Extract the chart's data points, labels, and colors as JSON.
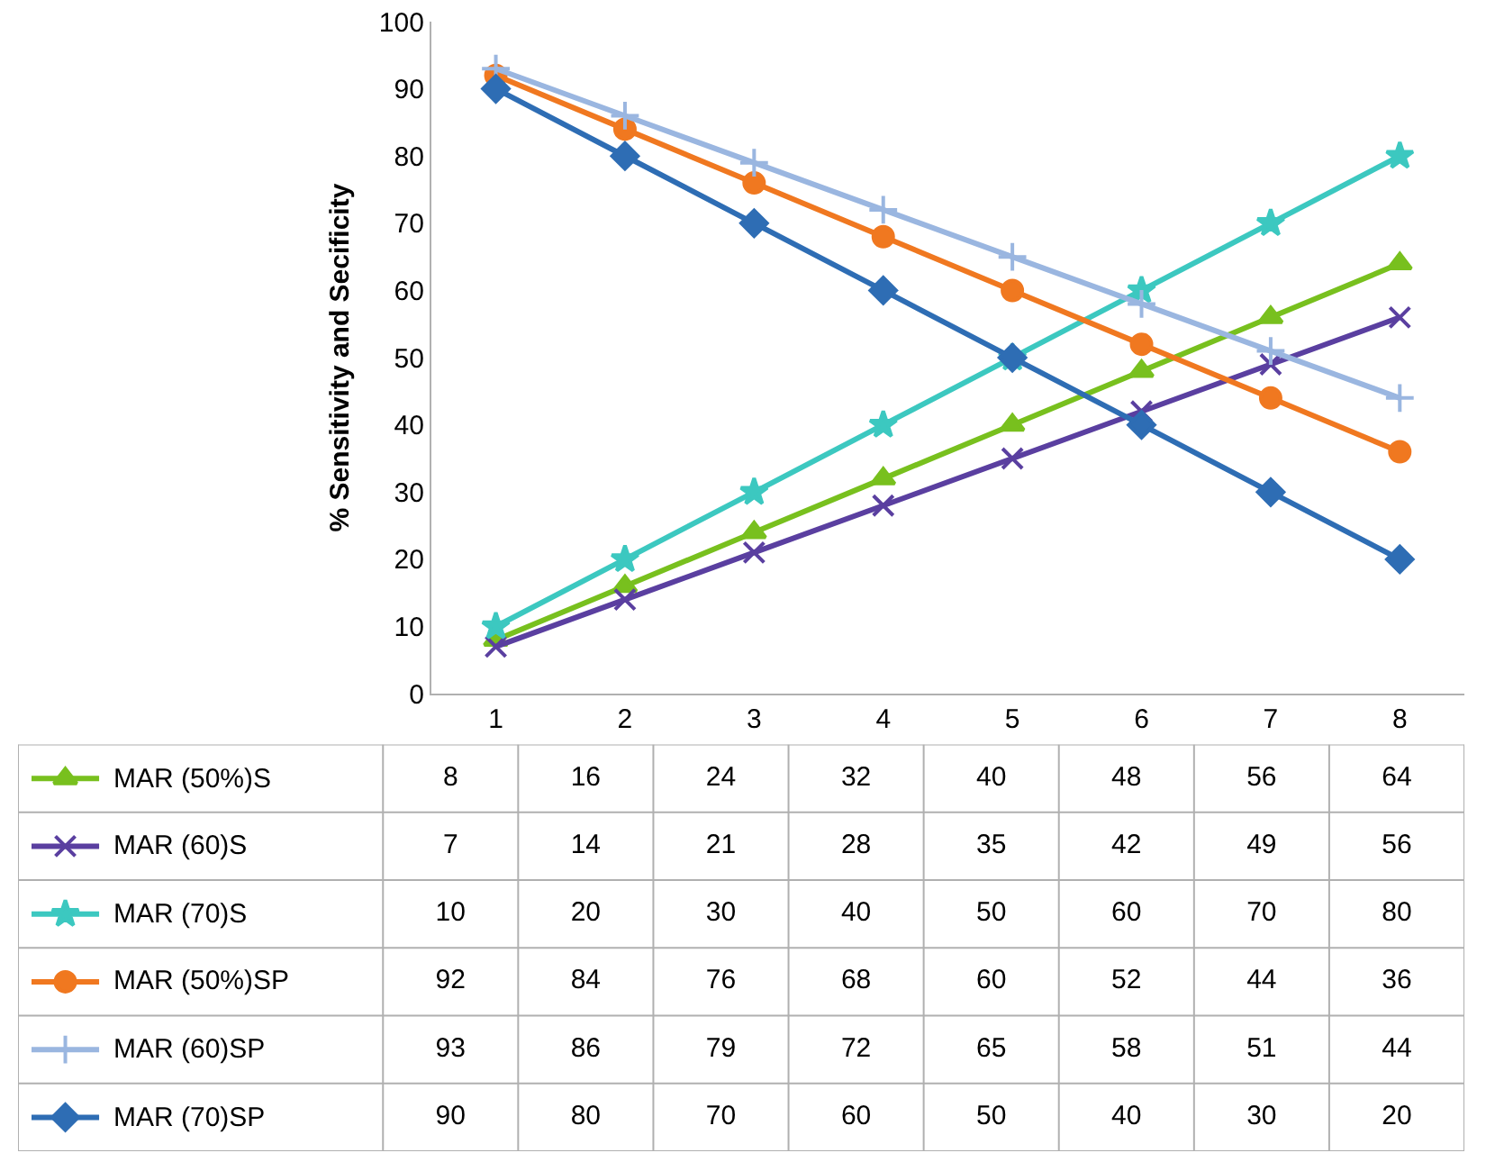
{
  "chart_data": {
    "type": "line",
    "ylabel": "% Sensitivity and Secificity",
    "categories": [
      "1",
      "2",
      "3",
      "4",
      "5",
      "6",
      "7",
      "8"
    ],
    "ylim": [
      0,
      100
    ],
    "yticks": [
      0,
      10,
      20,
      30,
      40,
      50,
      60,
      70,
      80,
      90,
      100
    ],
    "legend": "left",
    "data_labels": true,
    "series": [
      {
        "name": "MAR (50%)S",
        "color": "#78c01e",
        "marker": "triangle",
        "values": [
          8,
          16,
          24,
          32,
          40,
          48,
          56,
          64
        ]
      },
      {
        "name": "MAR (60)S",
        "color": "#5a3fa0",
        "marker": "x",
        "values": [
          7,
          14,
          21,
          28,
          35,
          42,
          49,
          56
        ]
      },
      {
        "name": "MAR (70)S",
        "color": "#3cc8c0",
        "marker": "star",
        "values": [
          10,
          20,
          30,
          40,
          50,
          60,
          70,
          80
        ]
      },
      {
        "name": "MAR (50%)SP",
        "color": "#f07820",
        "marker": "circle",
        "values": [
          92,
          84,
          76,
          68,
          60,
          52,
          44,
          36
        ]
      },
      {
        "name": "MAR (60)SP",
        "color": "#9ab6e0",
        "marker": "cross",
        "values": [
          93,
          86,
          79,
          72,
          65,
          58,
          51,
          44
        ]
      },
      {
        "name": "MAR (70)SP",
        "color": "#2e6db4",
        "marker": "diamond",
        "values": [
          90,
          80,
          70,
          60,
          50,
          40,
          30,
          20
        ]
      }
    ]
  }
}
